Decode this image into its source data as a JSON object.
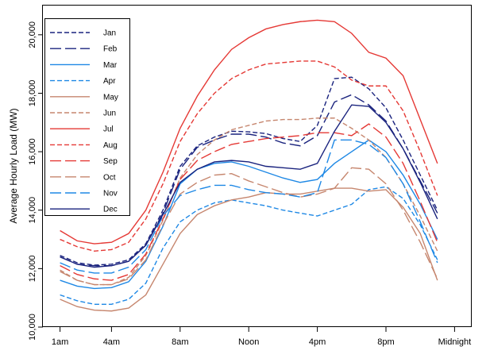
{
  "chart_data": {
    "type": "line",
    "title": "",
    "xlabel": "",
    "ylabel": "Average Hourly Load (MW)",
    "x": [
      1,
      2,
      3,
      4,
      5,
      6,
      7,
      8,
      9,
      10,
      11,
      12,
      13,
      14,
      15,
      16,
      17,
      18,
      19,
      20,
      21,
      22,
      23,
      24
    ],
    "xlim": [
      0,
      25
    ],
    "ylim": [
      10000,
      21000
    ],
    "x_ticks": [
      {
        "value": 1,
        "label": "1am"
      },
      {
        "value": 4,
        "label": "4am"
      },
      {
        "value": 8,
        "label": "8am"
      },
      {
        "value": 12,
        "label": "Noon"
      },
      {
        "value": 16,
        "label": "4pm"
      },
      {
        "value": 20,
        "label": "8pm"
      },
      {
        "value": 24,
        "label": "Midnight"
      }
    ],
    "y_ticks": [
      {
        "value": 10000,
        "label": "10,000"
      },
      {
        "value": 12000,
        "label": "12,000"
      },
      {
        "value": 14000,
        "label": "14,000"
      },
      {
        "value": 16000,
        "label": "16,000"
      },
      {
        "value": 18000,
        "label": "18,000"
      },
      {
        "value": 20000,
        "label": "20,000"
      }
    ],
    "grid": false,
    "legend_position": "top-left",
    "series": [
      {
        "name": "Jan",
        "color": "#1a237e",
        "dash": "short",
        "values": [
          12450,
          12200,
          12120,
          12150,
          12300,
          12850,
          14000,
          15500,
          16200,
          16500,
          16700,
          16680,
          16620,
          16450,
          16350,
          16900,
          18500,
          18550,
          18150,
          17500,
          16400,
          15200,
          14000,
          null
        ]
      },
      {
        "name": "Feb",
        "color": "#1a237e",
        "dash": "long",
        "values": [
          12400,
          12150,
          12100,
          12100,
          12250,
          12800,
          13900,
          15400,
          16150,
          16400,
          16600,
          16600,
          16500,
          16300,
          16200,
          16550,
          17700,
          17950,
          17600,
          17050,
          16100,
          15000,
          13900,
          null
        ]
      },
      {
        "name": "Mar",
        "color": "#1e88e5",
        "dash": "solid",
        "values": [
          11600,
          11400,
          11320,
          11350,
          11550,
          12250,
          13450,
          14900,
          15400,
          15600,
          15650,
          15500,
          15300,
          15100,
          14950,
          15050,
          15600,
          16000,
          16400,
          16000,
          15200,
          14200,
          13000,
          null
        ]
      },
      {
        "name": "Apr",
        "color": "#1e88e5",
        "dash": "short",
        "values": [
          11100,
          10900,
          10780,
          10780,
          10950,
          11500,
          12700,
          13600,
          14000,
          14250,
          14350,
          14250,
          14150,
          14000,
          13900,
          13800,
          14000,
          14200,
          14700,
          14800,
          14400,
          13500,
          12300,
          null
        ]
      },
      {
        "name": "May",
        "color": "#c6866e",
        "dash": "solid",
        "values": [
          10950,
          10700,
          10580,
          10550,
          10650,
          11100,
          12150,
          13200,
          13850,
          14150,
          14350,
          14450,
          14600,
          14550,
          14550,
          14650,
          14750,
          14750,
          14650,
          14700,
          14100,
          13200,
          11600,
          null
        ]
      },
      {
        "name": "Jun",
        "color": "#c6866e",
        "dash": "short",
        "values": [
          11950,
          11600,
          11450,
          11450,
          11700,
          12450,
          13650,
          15100,
          15900,
          16400,
          16750,
          16900,
          17050,
          17100,
          17100,
          17150,
          17150,
          16800,
          16400,
          15800,
          14900,
          13800,
          12600,
          null
        ]
      },
      {
        "name": "Jul",
        "color": "#e53935",
        "dash": "solid",
        "values": [
          13300,
          12950,
          12850,
          12900,
          13200,
          14000,
          15300,
          16800,
          17900,
          18800,
          19500,
          19900,
          20200,
          20350,
          20450,
          20500,
          20450,
          20050,
          19400,
          19200,
          18600,
          17100,
          15600,
          null
        ]
      },
      {
        "name": "Aug",
        "color": "#e53935",
        "dash": "short",
        "values": [
          13000,
          12750,
          12600,
          12650,
          12900,
          13700,
          14900,
          16350,
          17300,
          18000,
          18500,
          18800,
          19000,
          19050,
          19100,
          19100,
          18900,
          18450,
          18250,
          18250,
          17400,
          16000,
          14500,
          null
        ]
      },
      {
        "name": "Sep",
        "color": "#e53935",
        "dash": "long",
        "values": [
          12100,
          11800,
          11650,
          11600,
          11800,
          12500,
          13700,
          15050,
          15700,
          16000,
          16250,
          16350,
          16450,
          16500,
          16550,
          16650,
          16650,
          16550,
          16950,
          16500,
          15600,
          14300,
          12900,
          null
        ]
      },
      {
        "name": "Oct",
        "color": "#c6866e",
        "dash": "long",
        "values": [
          11900,
          11600,
          11450,
          11450,
          11650,
          12300,
          13500,
          14550,
          14950,
          15200,
          15250,
          15000,
          14800,
          14600,
          14450,
          14550,
          14750,
          15450,
          15400,
          14900,
          14000,
          12900,
          11650,
          null
        ]
      },
      {
        "name": "Nov",
        "color": "#1e88e5",
        "dash": "long",
        "values": [
          12200,
          11950,
          11850,
          11850,
          12050,
          12650,
          13800,
          14500,
          14700,
          14850,
          14850,
          14700,
          14600,
          14550,
          14450,
          14600,
          16400,
          16400,
          16250,
          15800,
          14900,
          13600,
          12200,
          null
        ]
      },
      {
        "name": "Dec",
        "color": "#1a237e",
        "dash": "solid",
        "values": [
          12400,
          12150,
          12050,
          12100,
          12250,
          12800,
          13850,
          14950,
          15400,
          15650,
          15700,
          15650,
          15500,
          15450,
          15400,
          15600,
          16700,
          17600,
          17550,
          17000,
          16100,
          14950,
          13700,
          null
        ]
      }
    ]
  }
}
